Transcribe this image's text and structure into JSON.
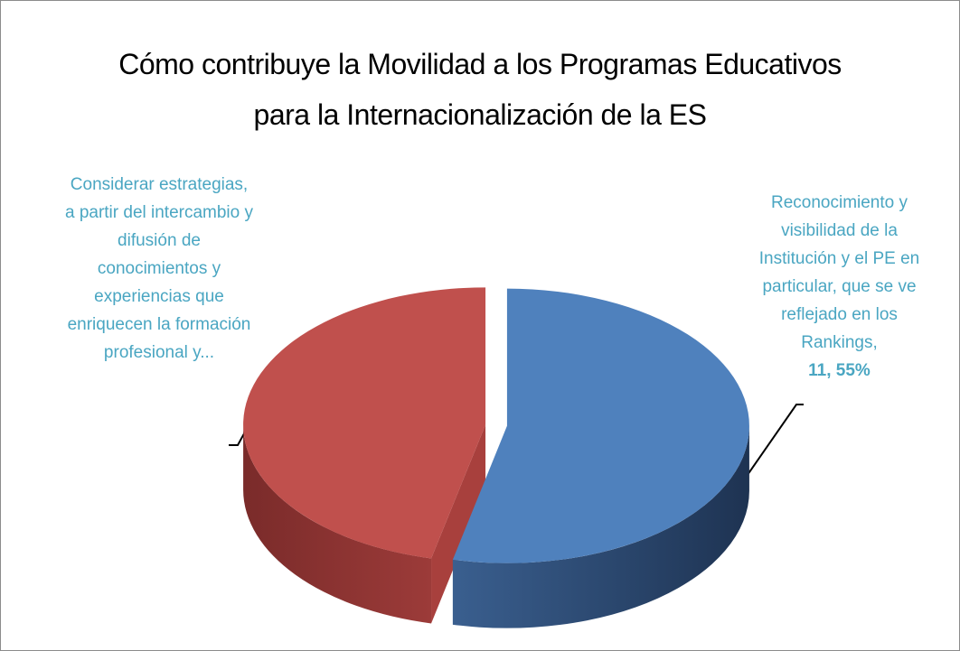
{
  "chart_data": {
    "type": "pie",
    "title": "Cómo contribuye la Movilidad a los Programas Educativos para la Internacionalización de la ES",
    "categories": [
      "Reconocimiento y visibilidad de la Institución y el PE en particular, que se ve reflejado en los Rankings,",
      "Considerar estrategias, a partir del intercambio y difusión de conocimientos y experiencias que enriquecen la formación profesional y..."
    ],
    "values": [
      11.55,
      10.0
    ],
    "value_labels": [
      "11, 55%",
      null
    ],
    "colors": [
      "#4f81bd",
      "#c0504d"
    ]
  }
}
